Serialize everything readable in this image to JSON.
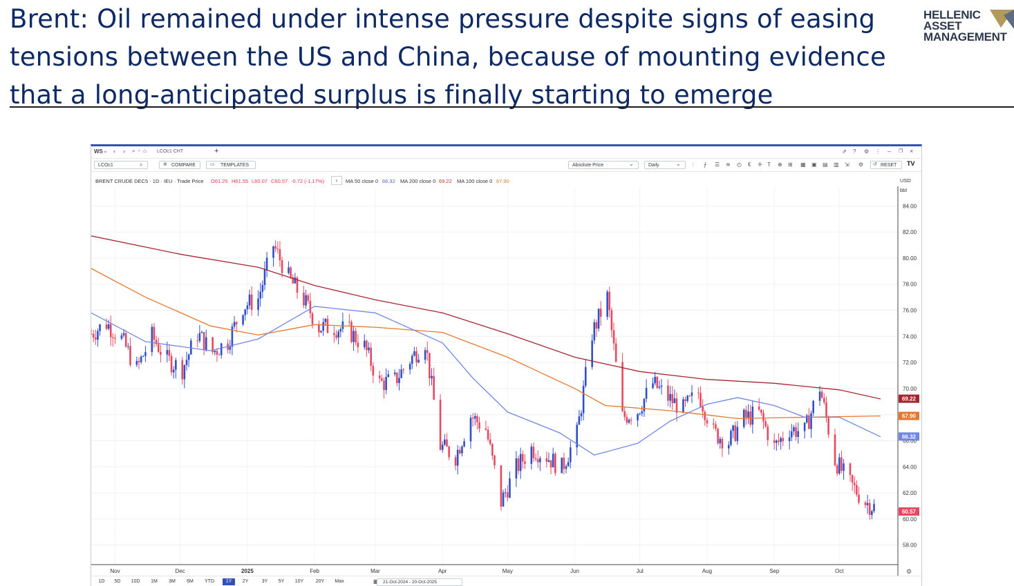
{
  "slide": {
    "title": "Brent: Oil remained under intense pressure despite signs of easing tensions between the US and China, because of mounting evidence that a long-anticipated surplus is finally starting to emerge",
    "logo_lines": [
      "HELLENIC",
      "ASSET",
      "MANAGEMENT"
    ]
  },
  "window": {
    "app_label": "WS",
    "tab_label": "LCOc1 CHT",
    "add_tab": "+"
  },
  "toolbar": {
    "ric_value": "LCOc1",
    "compare_label": "COMPARE",
    "templates_label": "TEMPLATES",
    "price_type": "Absolute Price",
    "interval": "Daily",
    "reset_label": "RESET"
  },
  "legend": {
    "instrument": "BRENT CRUDE DEC5 · 1D · IEU · Trade Price",
    "open": "O61.25",
    "high": "H61.55",
    "low": "L60.07",
    "close": "C60.57",
    "change": "-0.72 (-1.17%)",
    "ma50_label": "MA 50 close 0",
    "ma50_value": "66.32",
    "ma200_label": "MA 200 close 0",
    "ma200_value": "69.22",
    "ma100_label": "MA 100 close 0",
    "ma100_value": "67.90",
    "currency": "USD",
    "unit": "bbl"
  },
  "colors": {
    "up": "#2f4fc8",
    "down": "#e8485f",
    "ma50": "#6f86e8",
    "ma100": "#e6772e",
    "ma200": "#a8242f",
    "title": "#0d2a66",
    "accent": "#3650b0"
  },
  "ranges": [
    "1D",
    "5D",
    "10D",
    "1M",
    "3M",
    "6M",
    "YTD",
    "1Y",
    "2Y",
    "3Y",
    "5Y",
    "10Y",
    "20Y",
    "Max"
  ],
  "active_range": "1Y",
  "date_range": "21-Oct-2024 - 20-Oct-2025",
  "chart_data": {
    "type": "candlestick",
    "title": "BRENT CRUDE DEC5",
    "ylabel": "USD bbl",
    "ylim": [
      56.5,
      85.5
    ],
    "y_ticks": [
      "58.00",
      "60.00",
      "62.00",
      "64.00",
      "66.00",
      "68.00",
      "70.00",
      "72.00",
      "74.00",
      "76.00",
      "78.00",
      "80.00",
      "82.00",
      "84.00"
    ],
    "x_ticks": [
      {
        "label": "Nov",
        "date": "2024-11-01"
      },
      {
        "label": "Dec",
        "date": "2024-12-01"
      },
      {
        "label": "2025",
        "date": "2025-01-01"
      },
      {
        "label": "Feb",
        "date": "2025-02-01"
      },
      {
        "label": "Mar",
        "date": "2025-03-01"
      },
      {
        "label": "Apr",
        "date": "2025-04-01"
      },
      {
        "label": "May",
        "date": "2025-05-01"
      },
      {
        "label": "Jun",
        "date": "2025-06-01"
      },
      {
        "label": "Jul",
        "date": "2025-07-01"
      },
      {
        "label": "Aug",
        "date": "2025-08-01"
      },
      {
        "label": "Sep",
        "date": "2025-09-01"
      },
      {
        "label": "Oct",
        "date": "2025-10-01"
      }
    ],
    "x_range": [
      "2024-10-21",
      "2025-10-28"
    ],
    "closes": [
      {
        "date": "2024-10-21",
        "close": 74.2
      },
      {
        "date": "2024-10-28",
        "close": 75.0
      },
      {
        "date": "2024-11-04",
        "close": 73.8
      },
      {
        "date": "2024-11-11",
        "close": 71.5
      },
      {
        "date": "2024-11-18",
        "close": 74.0
      },
      {
        "date": "2024-11-25",
        "close": 72.2
      },
      {
        "date": "2024-12-02",
        "close": 71.5
      },
      {
        "date": "2024-12-09",
        "close": 74.2
      },
      {
        "date": "2024-12-16",
        "close": 72.8
      },
      {
        "date": "2024-12-23",
        "close": 73.6
      },
      {
        "date": "2024-12-30",
        "close": 76.3
      },
      {
        "date": "2025-01-06",
        "close": 76.9
      },
      {
        "date": "2025-01-13",
        "close": 81.0
      },
      {
        "date": "2025-01-20",
        "close": 78.5
      },
      {
        "date": "2025-01-27",
        "close": 76.8
      },
      {
        "date": "2025-02-03",
        "close": 74.7
      },
      {
        "date": "2025-02-10",
        "close": 74.7
      },
      {
        "date": "2025-02-17",
        "close": 74.4
      },
      {
        "date": "2025-02-24",
        "close": 73.2
      },
      {
        "date": "2025-03-03",
        "close": 70.4
      },
      {
        "date": "2025-03-10",
        "close": 70.6
      },
      {
        "date": "2025-03-17",
        "close": 72.2
      },
      {
        "date": "2025-03-24",
        "close": 73.6
      },
      {
        "date": "2025-03-31",
        "close": 65.6
      },
      {
        "date": "2025-04-07",
        "close": 64.8
      },
      {
        "date": "2025-04-14",
        "close": 67.9
      },
      {
        "date": "2025-04-21",
        "close": 66.9
      },
      {
        "date": "2025-04-28",
        "close": 61.3
      },
      {
        "date": "2025-05-05",
        "close": 63.9
      },
      {
        "date": "2025-05-12",
        "close": 65.4
      },
      {
        "date": "2025-05-19",
        "close": 64.8
      },
      {
        "date": "2025-05-26",
        "close": 63.9
      },
      {
        "date": "2025-06-02",
        "close": 66.5
      },
      {
        "date": "2025-06-09",
        "close": 74.2
      },
      {
        "date": "2025-06-16",
        "close": 77.0
      },
      {
        "date": "2025-06-23",
        "close": 67.8
      },
      {
        "date": "2025-06-30",
        "close": 68.3
      },
      {
        "date": "2025-07-07",
        "close": 70.4
      },
      {
        "date": "2025-07-14",
        "close": 69.3
      },
      {
        "date": "2025-07-21",
        "close": 68.4
      },
      {
        "date": "2025-07-28",
        "close": 69.7
      },
      {
        "date": "2025-08-04",
        "close": 66.6
      },
      {
        "date": "2025-08-11",
        "close": 65.9
      },
      {
        "date": "2025-08-18",
        "close": 67.7
      },
      {
        "date": "2025-08-25",
        "close": 68.1
      },
      {
        "date": "2025-09-01",
        "close": 65.5
      },
      {
        "date": "2025-09-08",
        "close": 66.9
      },
      {
        "date": "2025-09-15",
        "close": 66.7
      },
      {
        "date": "2025-09-22",
        "close": 70.1
      },
      {
        "date": "2025-09-29",
        "close": 64.5
      },
      {
        "date": "2025-10-06",
        "close": 62.7
      },
      {
        "date": "2025-10-13",
        "close": 61.3
      },
      {
        "date": "2025-10-20",
        "close": 60.6
      }
    ],
    "ma50": [
      {
        "date": "2024-10-21",
        "close": 75.8
      },
      {
        "date": "2024-11-15",
        "close": 73.6
      },
      {
        "date": "2024-12-15",
        "close": 72.9
      },
      {
        "date": "2025-01-06",
        "close": 73.8
      },
      {
        "date": "2025-02-01",
        "close": 76.3
      },
      {
        "date": "2025-03-01",
        "close": 75.8
      },
      {
        "date": "2025-04-01",
        "close": 73.5
      },
      {
        "date": "2025-04-15",
        "close": 70.8
      },
      {
        "date": "2025-05-01",
        "close": 68.2
      },
      {
        "date": "2025-05-25",
        "close": 66.6
      },
      {
        "date": "2025-06-10",
        "close": 64.9
      },
      {
        "date": "2025-06-30",
        "close": 65.8
      },
      {
        "date": "2025-07-15",
        "close": 67.5
      },
      {
        "date": "2025-08-01",
        "close": 68.8
      },
      {
        "date": "2025-08-15",
        "close": 69.3
      },
      {
        "date": "2025-09-01",
        "close": 68.7
      },
      {
        "date": "2025-09-15",
        "close": 67.8
      },
      {
        "date": "2025-10-01",
        "close": 67.8
      },
      {
        "date": "2025-10-20",
        "close": 66.3
      }
    ],
    "ma100": [
      {
        "date": "2024-10-21",
        "close": 79.2
      },
      {
        "date": "2024-11-15",
        "close": 77.0
      },
      {
        "date": "2024-12-15",
        "close": 74.8
      },
      {
        "date": "2025-01-06",
        "close": 74.1
      },
      {
        "date": "2025-02-01",
        "close": 74.9
      },
      {
        "date": "2025-03-01",
        "close": 74.7
      },
      {
        "date": "2025-04-01",
        "close": 74.3
      },
      {
        "date": "2025-05-01",
        "close": 72.4
      },
      {
        "date": "2025-06-01",
        "close": 70.0
      },
      {
        "date": "2025-06-15",
        "close": 68.7
      },
      {
        "date": "2025-07-15",
        "close": 68.3
      },
      {
        "date": "2025-08-15",
        "close": 67.7
      },
      {
        "date": "2025-09-15",
        "close": 67.8
      },
      {
        "date": "2025-10-20",
        "close": 67.9
      }
    ],
    "ma200": [
      {
        "date": "2024-10-21",
        "close": 81.7
      },
      {
        "date": "2024-12-01",
        "close": 80.3
      },
      {
        "date": "2025-01-06",
        "close": 79.3
      },
      {
        "date": "2025-02-01",
        "close": 77.9
      },
      {
        "date": "2025-03-01",
        "close": 76.8
      },
      {
        "date": "2025-04-01",
        "close": 75.8
      },
      {
        "date": "2025-05-01",
        "close": 74.2
      },
      {
        "date": "2025-06-01",
        "close": 72.4
      },
      {
        "date": "2025-07-01",
        "close": 71.3
      },
      {
        "date": "2025-08-01",
        "close": 70.7
      },
      {
        "date": "2025-09-01",
        "close": 70.4
      },
      {
        "date": "2025-10-01",
        "close": 69.9
      },
      {
        "date": "2025-10-20",
        "close": 69.2
      }
    ],
    "last_price_tag": "60.57",
    "ma_tags": [
      "69.22",
      "67.90",
      "66.32"
    ]
  }
}
